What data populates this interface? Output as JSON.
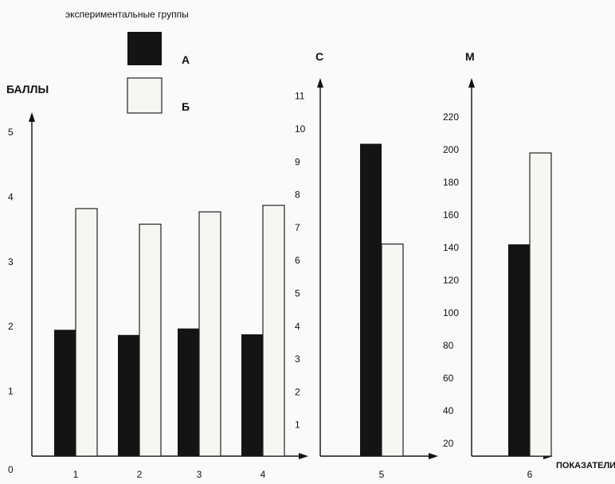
{
  "legend": {
    "title": "экспериментальные группы",
    "items": [
      {
        "label": "А",
        "color": "#141414"
      },
      {
        "label": "Б",
        "color": "#f6f6f2"
      }
    ]
  },
  "x_axis_label": "ПОКАЗАТЕЛИ",
  "chart_data": [
    {
      "type": "bar",
      "ylabel": "БАЛЛЫ",
      "ylim": [
        0,
        5
      ],
      "yticks": [
        "0",
        "1",
        "2",
        "3",
        "4",
        "5"
      ],
      "categories": [
        "1",
        "2",
        "3",
        "4"
      ],
      "series": [
        {
          "name": "А",
          "values": [
            1.95,
            1.87,
            1.97,
            1.88
          ]
        },
        {
          "name": "Б",
          "values": [
            3.82,
            3.58,
            3.77,
            3.87
          ]
        }
      ]
    },
    {
      "type": "bar",
      "ylabel": "С",
      "ylim": [
        0,
        11
      ],
      "yticks": [
        "1",
        "2",
        "3",
        "4",
        "5",
        "6",
        "7",
        "8",
        "9",
        "10",
        "11"
      ],
      "categories": [
        "5"
      ],
      "series": [
        {
          "name": "А",
          "values": [
            9.55
          ]
        },
        {
          "name": "Б",
          "values": [
            6.5
          ]
        }
      ]
    },
    {
      "type": "bar",
      "ylabel": "М",
      "ylim": [
        0,
        220
      ],
      "yticks": [
        "20",
        "40",
        "60",
        "80",
        "100",
        "120",
        "140",
        "160",
        "180",
        "200",
        "220"
      ],
      "categories": [
        "6"
      ],
      "series": [
        {
          "name": "А",
          "values": [
            142
          ]
        },
        {
          "name": "Б",
          "values": [
            198
          ]
        }
      ]
    }
  ]
}
